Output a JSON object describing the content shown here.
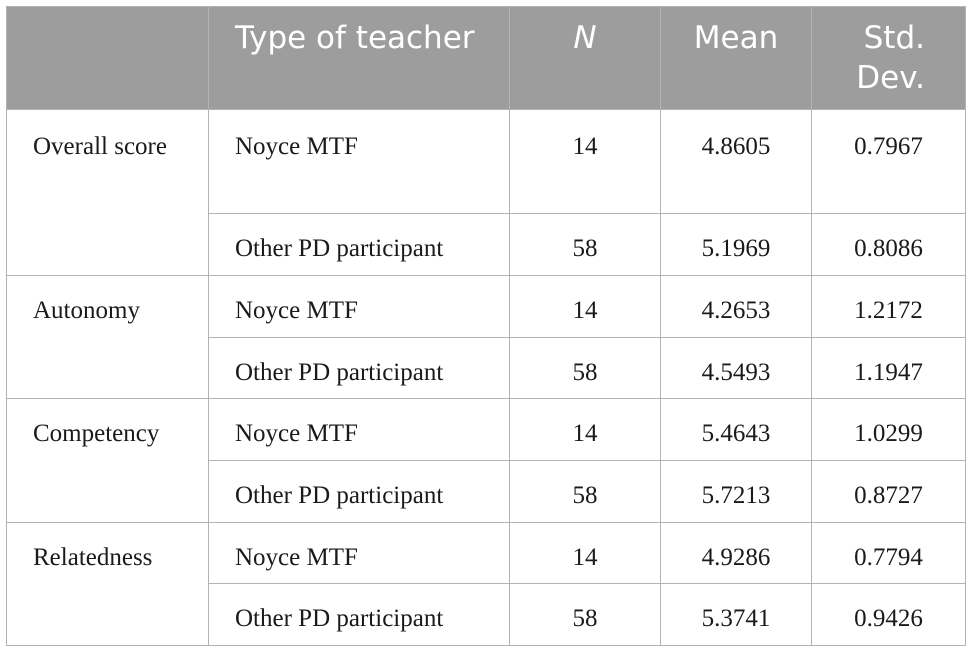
{
  "headers": {
    "metric": "",
    "type": "Type of teacher",
    "n": "N",
    "mean": "Mean",
    "sd": "Std. Dev."
  },
  "rows": [
    {
      "metric": "Overall score",
      "type": "Noyce MTF",
      "n": "14",
      "mean": "4.8605",
      "sd": "0.7967"
    },
    {
      "metric": "",
      "type": "Other PD participant",
      "n": "58",
      "mean": "5.1969",
      "sd": "0.8086"
    },
    {
      "metric": "Autonomy",
      "type": "Noyce MTF",
      "n": "14",
      "mean": "4.2653",
      "sd": "1.2172"
    },
    {
      "metric": "",
      "type": "Other PD participant",
      "n": "58",
      "mean": "4.5493",
      "sd": "1.1947"
    },
    {
      "metric": "Competency",
      "type": "Noyce MTF",
      "n": "14",
      "mean": "5.4643",
      "sd": "1.0299"
    },
    {
      "metric": "",
      "type": "Other PD participant",
      "n": "58",
      "mean": "5.7213",
      "sd": "0.8727"
    },
    {
      "metric": "Relatedness",
      "type": "Noyce MTF",
      "n": "14",
      "mean": "4.9286",
      "sd": "0.7794"
    },
    {
      "metric": "",
      "type": "Other PD participant",
      "n": "58",
      "mean": "5.3741",
      "sd": "0.9426"
    }
  ]
}
